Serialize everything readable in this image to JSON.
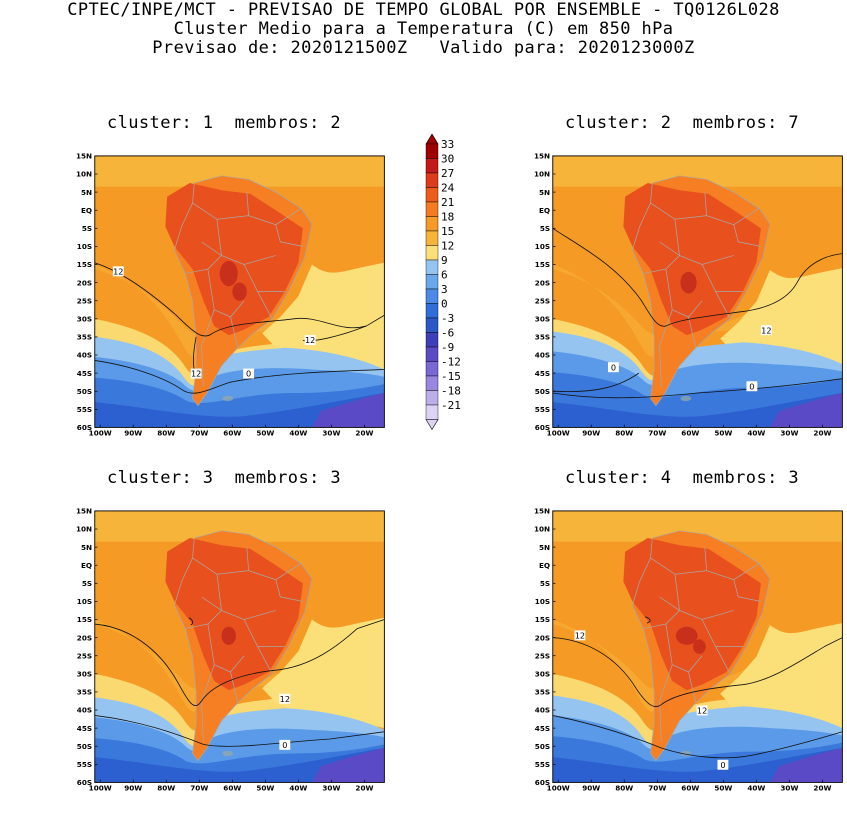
{
  "header": {
    "line1": "CPTEC/INPE/MCT - PREVISAO DE TEMPO GLOBAL POR ENSEMBLE - TQ0126L028",
    "line2": "Cluster Medio para a Temperatura (C) em 850 hPa",
    "line3": "Previsao de: 2020121500Z   Valido para: 2020123000Z"
  },
  "panels": [
    {
      "title": "cluster: 1  membros: 2",
      "contour_labels": [
        "12",
        "12",
        "12",
        "0"
      ]
    },
    {
      "title": "cluster: 2  membros: 7",
      "contour_labels": [
        "12",
        "0",
        "0"
      ]
    },
    {
      "title": "cluster: 3  membros: 3",
      "contour_labels": [
        "12",
        "0"
      ]
    },
    {
      "title": "cluster: 4  membros: 3",
      "contour_labels": [
        "12",
        "12",
        "0"
      ]
    }
  ],
  "axes": {
    "lat_labels": [
      "15N",
      "10N",
      "5N",
      "EQ",
      "5S",
      "10S",
      "15S",
      "20S",
      "25S",
      "30S",
      "35S",
      "40S",
      "45S",
      "50S",
      "55S",
      "60S"
    ],
    "lon_labels": [
      "100W",
      "90W",
      "80W",
      "70W",
      "60W",
      "50W",
      "40W",
      "30W",
      "20W"
    ]
  },
  "colorbar": {
    "levels": [
      "33",
      "30",
      "27",
      "24",
      "21",
      "18",
      "15",
      "12",
      "9",
      "6",
      "3",
      "0",
      "-3",
      "-6",
      "-9",
      "-12",
      "-15",
      "-18",
      "-21"
    ],
    "colors": [
      "#a00000",
      "#c41a1a",
      "#de3b1b",
      "#ee5a1a",
      "#f57a22",
      "#f59a24",
      "#f6b43a",
      "#fbe07a",
      "#94c4ef",
      "#6aa8ec",
      "#4a8ae6",
      "#2f6ed8",
      "#2a58c6",
      "#3d3fba",
      "#5a4ac6",
      "#7a66d4",
      "#9a86e0",
      "#bcaee8",
      "#dcd2f4"
    ]
  },
  "palette": {
    "hot": "#e8501e",
    "warm": "#f57f22",
    "orange": "#f59a24",
    "light_orange": "#f6b43a",
    "yellow": "#fbe07a",
    "lightblue": "#94c4ef",
    "midblue": "#5a9ae8",
    "blue": "#3a78dc",
    "deepblue": "#2c5fcf",
    "purple": "#5a4ac6",
    "land_border": "#a8a8a8"
  }
}
